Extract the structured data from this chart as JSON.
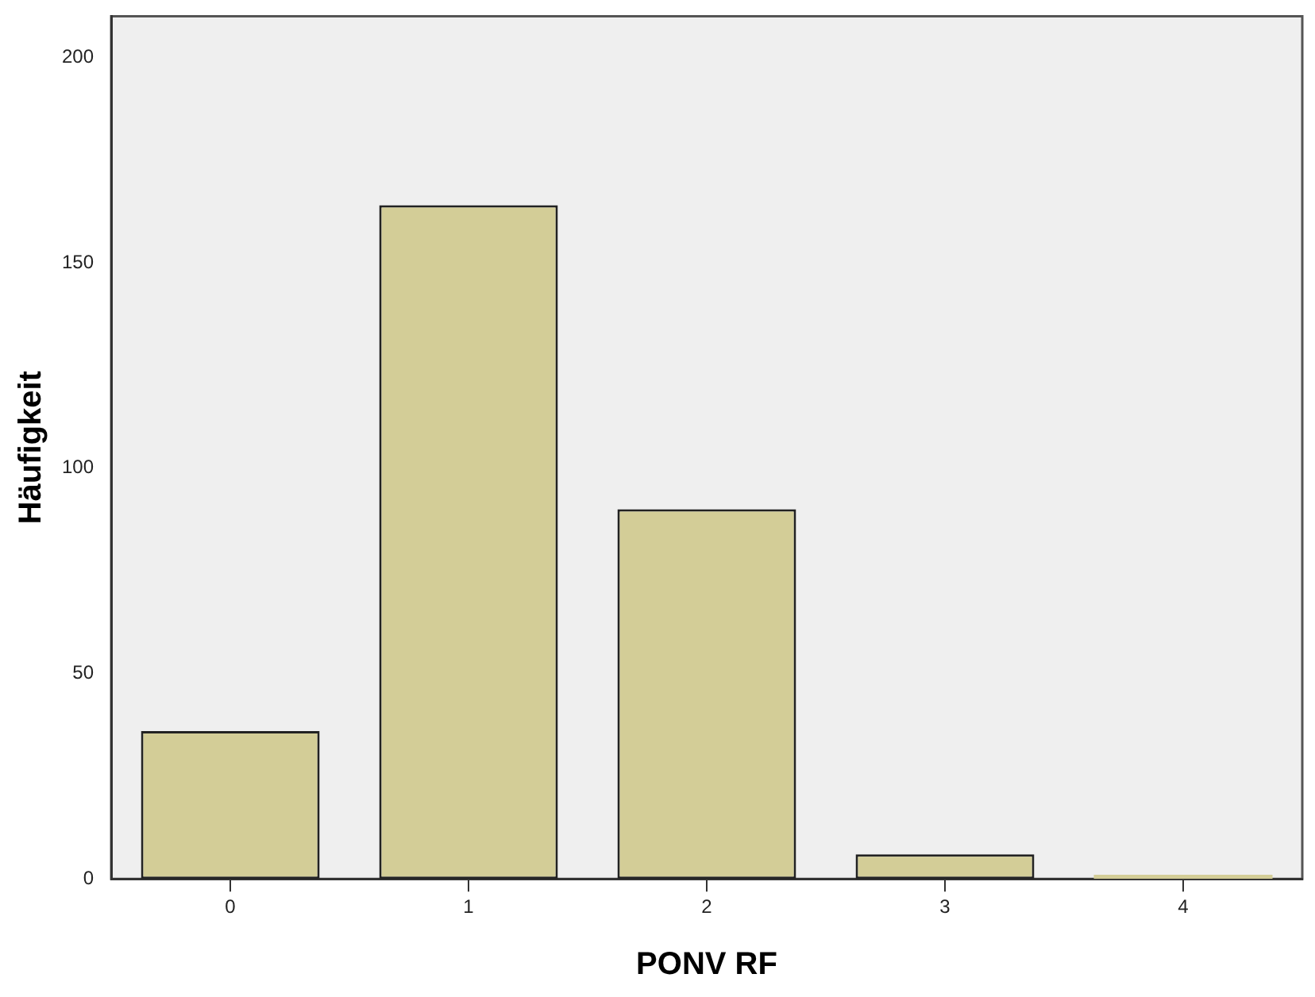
{
  "chart_data": {
    "type": "bar",
    "xlabel": "PONV RF",
    "ylabel": "Häufigkeit",
    "categories": [
      "0",
      "1",
      "2",
      "3",
      "4"
    ],
    "values": [
      36,
      164,
      90,
      6,
      1
    ],
    "color": "#d3cd97",
    "ylim": [
      0,
      210
    ],
    "yticks": [
      0,
      50,
      100,
      150,
      200
    ],
    "grid": false,
    "legend": false
  }
}
